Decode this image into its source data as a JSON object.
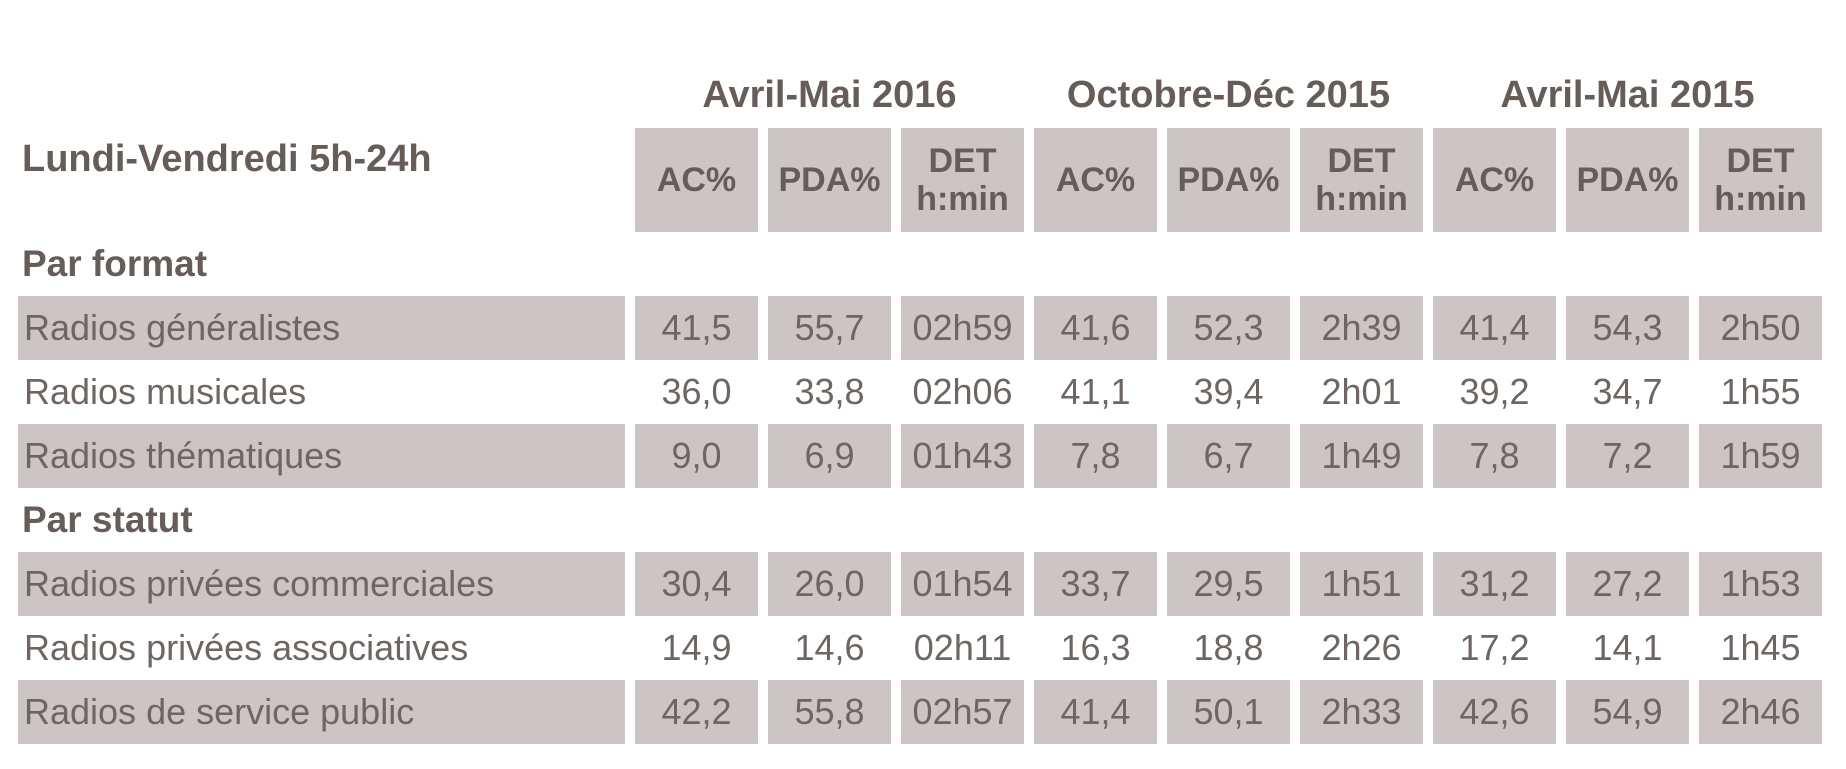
{
  "colors": {
    "shade": "#ccc5c4",
    "text_regular": "#6f6561",
    "text_bold": "#665c58",
    "background": "#ffffff"
  },
  "table": {
    "title": "Lundi-Vendredi 5h-24h",
    "periods": [
      {
        "label": "Avril-Mai 2016"
      },
      {
        "label": "Octobre-Déc 2015"
      },
      {
        "label": "Avril-Mai 2015"
      }
    ],
    "metric_headers": [
      "AC%",
      "PDA%",
      "DET\nh:min"
    ],
    "sections": [
      {
        "title": "Par format",
        "rows": [
          {
            "label": "Radios généralistes",
            "shaded": true,
            "values": [
              "41,5",
              "55,7",
              "02h59",
              "41,6",
              "52,3",
              "2h39",
              "41,4",
              "54,3",
              "2h50"
            ]
          },
          {
            "label": "Radios musicales",
            "shaded": false,
            "values": [
              "36,0",
              "33,8",
              "02h06",
              "41,1",
              "39,4",
              "2h01",
              "39,2",
              "34,7",
              "1h55"
            ]
          },
          {
            "label": "Radios thématiques",
            "shaded": true,
            "values": [
              "9,0",
              "6,9",
              "01h43",
              "7,8",
              "6,7",
              "1h49",
              "7,8",
              "7,2",
              "1h59"
            ]
          }
        ]
      },
      {
        "title": "Par statut",
        "rows": [
          {
            "label": "Radios privées commerciales",
            "shaded": true,
            "values": [
              "30,4",
              "26,0",
              "01h54",
              "33,7",
              "29,5",
              "1h51",
              "31,2",
              "27,2",
              "1h53"
            ]
          },
          {
            "label": "Radios privées associatives",
            "shaded": false,
            "values": [
              "14,9",
              "14,6",
              "02h11",
              "16,3",
              "18,8",
              "2h26",
              "17,2",
              "14,1",
              "1h45"
            ]
          },
          {
            "label": "Radios de service public",
            "shaded": true,
            "values": [
              "42,2",
              "55,8",
              "02h57",
              "41,4",
              "50,1",
              "2h33",
              "42,6",
              "54,9",
              "2h46"
            ]
          }
        ]
      }
    ]
  }
}
